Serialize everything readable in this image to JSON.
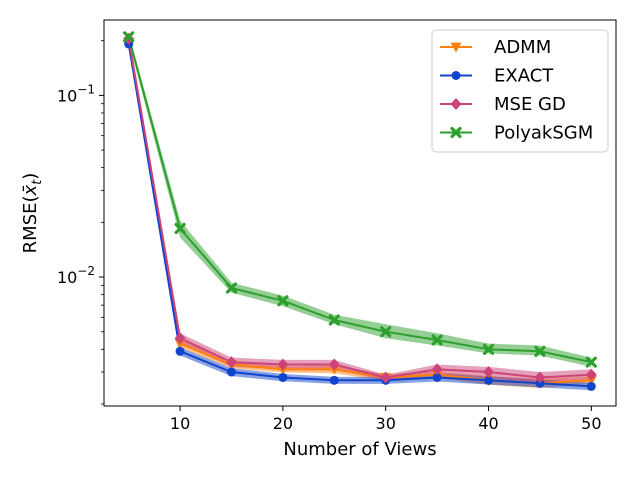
{
  "chart_data": {
    "type": "line",
    "title": "",
    "xlabel": "Number of Views",
    "ylabel": "RMSE(x̄_t)",
    "ylabel_main": "RMSE(",
    "ylabel_var": "x̄",
    "ylabel_sub": "t",
    "ylabel_close": ")",
    "yscale": "log",
    "xlim": [
      2.6,
      52.4
    ],
    "ylim": [
      0.00195,
      0.26
    ],
    "x_ticks": [
      10,
      20,
      30,
      40,
      50
    ],
    "x_tick_labels": [
      "10",
      "20",
      "30",
      "40",
      "50"
    ],
    "y_major_ticks": [
      0.01,
      0.1
    ],
    "y_tick_labels": [
      {
        "base": "10",
        "exp": "−2"
      },
      {
        "base": "10",
        "exp": "−1"
      }
    ],
    "y_minor_ticks": [
      0.002,
      0.003,
      0.004,
      0.005,
      0.006,
      0.007,
      0.008,
      0.009,
      0.02,
      0.03,
      0.04,
      0.05,
      0.06,
      0.07,
      0.08,
      0.09,
      0.2
    ],
    "grid": false,
    "legend_position": "top-right",
    "x": [
      5,
      10,
      15,
      20,
      25,
      30,
      35,
      40,
      45,
      50
    ],
    "series": [
      {
        "name": "ADMM",
        "color": "#ff7f0e",
        "marker": "triangle-down",
        "values": [
          0.195,
          0.0043,
          0.0033,
          0.0031,
          0.0031,
          0.0028,
          0.0029,
          0.0027,
          0.0026,
          0.0027
        ],
        "lower": [
          0.188,
          0.0041,
          0.00315,
          0.00298,
          0.00295,
          0.00268,
          0.00278,
          0.00255,
          0.00245,
          0.00258
        ],
        "upper": [
          0.202,
          0.0045,
          0.00345,
          0.00322,
          0.00325,
          0.00292,
          0.00302,
          0.00285,
          0.00275,
          0.00282
        ]
      },
      {
        "name": "EXACT",
        "color": "#1144cc",
        "marker": "circle",
        "values": [
          0.192,
          0.0039,
          0.003,
          0.0028,
          0.0027,
          0.0027,
          0.0028,
          0.0027,
          0.0026,
          0.0025
        ],
        "lower": [
          0.186,
          0.0037,
          0.00285,
          0.00267,
          0.00258,
          0.00258,
          0.00266,
          0.00256,
          0.00247,
          0.00238
        ],
        "upper": [
          0.198,
          0.0041,
          0.00315,
          0.00293,
          0.00282,
          0.00282,
          0.00294,
          0.00284,
          0.00273,
          0.00262
        ]
      },
      {
        "name": "MSE GD",
        "color": "#cc4477",
        "marker": "diamond",
        "values": [
          0.205,
          0.0046,
          0.0034,
          0.0033,
          0.0033,
          0.0028,
          0.0031,
          0.003,
          0.0028,
          0.0029
        ],
        "lower": [
          0.195,
          0.0043,
          0.0032,
          0.0031,
          0.0031,
          0.0027,
          0.0029,
          0.0028,
          0.0026,
          0.0027
        ],
        "upper": [
          0.215,
          0.0049,
          0.0036,
          0.0035,
          0.0035,
          0.0029,
          0.0033,
          0.0032,
          0.003,
          0.0031
        ]
      },
      {
        "name": "PolyakSGM",
        "color": "#2ca02c",
        "marker": "x",
        "values": [
          0.21,
          0.0185,
          0.0087,
          0.0074,
          0.0058,
          0.005,
          0.0045,
          0.004,
          0.0039,
          0.0034
        ],
        "lower": [
          0.198,
          0.0165,
          0.0082,
          0.0069,
          0.0055,
          0.0046,
          0.0042,
          0.0038,
          0.0037,
          0.0032
        ],
        "upper": [
          0.222,
          0.0205,
          0.0093,
          0.0079,
          0.0062,
          0.0055,
          0.0049,
          0.0043,
          0.0042,
          0.0036
        ]
      }
    ]
  }
}
